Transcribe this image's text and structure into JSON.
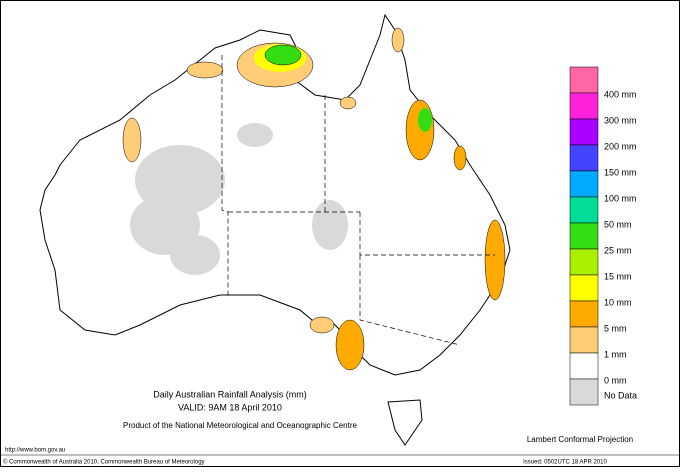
{
  "title": "Daily Australian Rainfall Analysis (mm)",
  "subtitle": "VALID: 9AM 18 April 2010",
  "credit": "Product of the National Meteorological and Oceanographic Centre",
  "url": "http://www.bom.gov.au",
  "copyright": "© Commonwealth of Australia 2010, Commonwealth Bureau of Meteorology",
  "projection": "Lambert Conformal Projection",
  "issued": "Issued: 0502UTC 18 APR 2010",
  "legend": {
    "colors": [
      "#ff66a8",
      "#ff22dd",
      "#aa00ff",
      "#4444ff",
      "#00aaff",
      "#00dd99",
      "#33dd11",
      "#aaee00",
      "#ffff00",
      "#ffaa00",
      "#ffcc77",
      "#ffffff",
      "#d9d9d9"
    ],
    "labels": [
      "400 mm",
      "300 mm",
      "200 mm",
      "150 mm",
      "100 mm",
      "50 mm",
      "25 mm",
      "15 mm",
      "10 mm",
      "5 mm",
      "1 mm",
      "0 mm",
      "No Data"
    ]
  }
}
